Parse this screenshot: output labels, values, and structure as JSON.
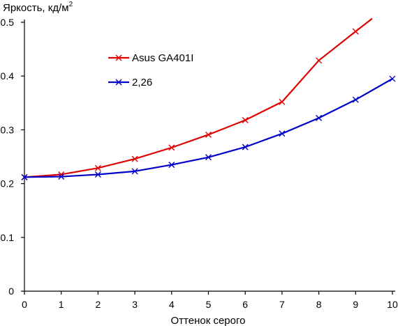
{
  "chart_data": {
    "type": "line",
    "ylabel": "Яркость, кд/м",
    "ylabel_sup": "2",
    "xlabel": "Оттенок серого",
    "xlim": [
      0,
      10
    ],
    "ylim": [
      0,
      0.5
    ],
    "xticks": [
      0,
      1,
      2,
      3,
      4,
      5,
      6,
      7,
      8,
      9,
      10
    ],
    "yticks": [
      0,
      0.1,
      0.2,
      0.3,
      0.4,
      0.5
    ],
    "ytick_labels": [
      "0",
      "0.1",
      "0.2",
      "0.3",
      "0.4",
      "0.5"
    ],
    "grid": false,
    "legend_position": "upper-left-inside",
    "series": [
      {
        "name": "Asus GA401I",
        "color": "#e00000",
        "marker": "x",
        "x": [
          0,
          1,
          2,
          3,
          4,
          5,
          6,
          7,
          8,
          9,
          9.45
        ],
        "y": [
          0.212,
          0.217,
          0.229,
          0.246,
          0.267,
          0.291,
          0.318,
          0.352,
          0.429,
          0.483,
          0.507
        ],
        "marker_count": 10
      },
      {
        "name": "2,26",
        "color": "#0000c8",
        "marker": "x",
        "x": [
          0,
          1,
          2,
          3,
          4,
          5,
          6,
          7,
          8,
          9,
          10
        ],
        "y": [
          0.212,
          0.213,
          0.217,
          0.223,
          0.235,
          0.249,
          0.268,
          0.293,
          0.322,
          0.356,
          0.395
        ],
        "marker_count": 11
      }
    ]
  }
}
